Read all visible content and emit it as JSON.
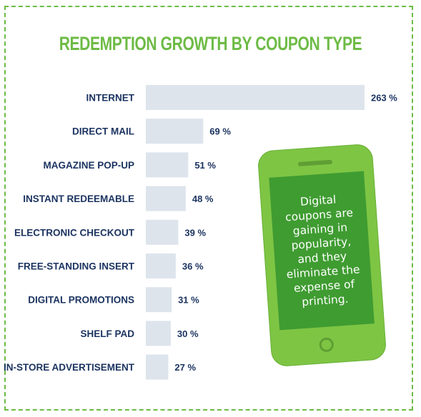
{
  "title": "REDEMPTION GROWTH BY COUPON TYPE",
  "colors": {
    "accent_green": "#6dbb45",
    "phone_green": "#7ec544",
    "screen_green": "#3f9c31",
    "bar": "#dde4ec",
    "label": "#1c3461"
  },
  "chart_data": {
    "type": "bar",
    "orientation": "horizontal",
    "title": "REDEMPTION GROWTH BY COUPON TYPE",
    "categories": [
      "INTERNET",
      "DIRECT MAIL",
      "MAGAZINE POP-UP",
      "INSTANT REDEEMABLE",
      "ELECTRONIC CHECKOUT",
      "FREE-STANDING INSERT",
      "DIGITAL PROMOTIONS",
      "SHELF PAD",
      "IN-STORE ADVERTISEMENT"
    ],
    "values": [
      263,
      69,
      51,
      48,
      39,
      36,
      31,
      30,
      27
    ],
    "value_labels": [
      "263 %",
      "69 %",
      "51 %",
      "48 %",
      "39 %",
      "36 %",
      "31 %",
      "30 %",
      "27 %"
    ],
    "unit": "%",
    "xlim": [
      0,
      263
    ],
    "grid": false,
    "legend": "none"
  },
  "phone": {
    "icon": "smartphone-icon",
    "text": "Digital coupons are gaining in popularity, and they eliminate the expense of printing."
  }
}
